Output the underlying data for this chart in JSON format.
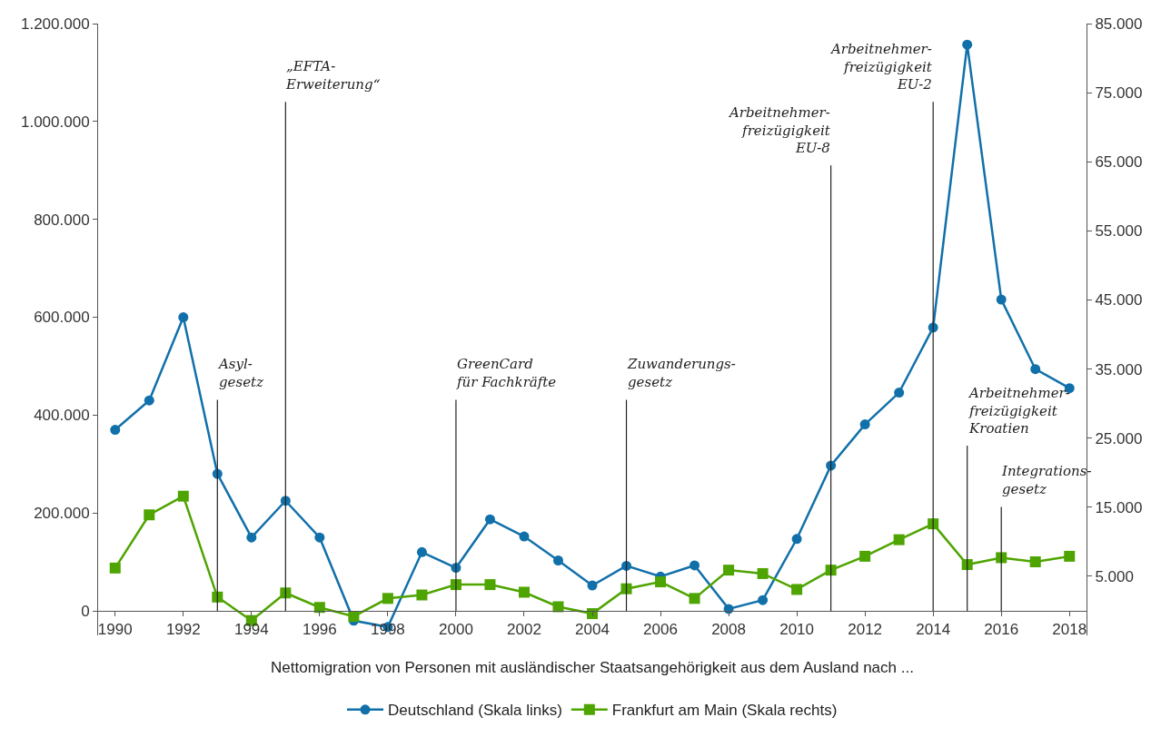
{
  "chart_data": {
    "type": "line",
    "xlabel": "Nettomigration von Personen mit ausländischer Staatsangehörigkeit aus dem Ausland nach ...",
    "x": [
      1990,
      1991,
      1992,
      1993,
      1994,
      1995,
      1996,
      1997,
      1998,
      1999,
      2000,
      2001,
      2002,
      2003,
      2004,
      2005,
      2006,
      2007,
      2008,
      2009,
      2010,
      2011,
      2012,
      2013,
      2014,
      2015,
      2016,
      2017,
      2018
    ],
    "series": [
      {
        "name": "Deutschland (Skala links)",
        "color": "#1170aa",
        "marker": "circle",
        "values": [
          370000,
          430000,
          600000,
          280000,
          150000,
          225000,
          150000,
          -20000,
          -33000,
          120000,
          88000,
          187000,
          152000,
          103000,
          52000,
          92000,
          70000,
          93000,
          4000,
          22000,
          147000,
          297000,
          381000,
          446000,
          579000,
          1157000,
          636000,
          494000,
          455000
        ]
      },
      {
        "name": "Frankfurt am Main (Skala rechts)",
        "color": "#4ea400",
        "marker": "square",
        "axis": "y2",
        "values": [
          6200,
          13900,
          16600,
          2000,
          -1400,
          2600,
          500,
          -800,
          1800,
          2300,
          3800,
          3800,
          2700,
          600,
          -400,
          3200,
          4200,
          1800,
          5900,
          5400,
          3100,
          5900,
          7900,
          10300,
          12600,
          6700,
          7700,
          7100,
          7900
        ]
      }
    ],
    "xlim": [
      1989.5,
      2018.5
    ],
    "xticks": [
      1990,
      1992,
      1994,
      1996,
      1998,
      2000,
      2002,
      2004,
      2006,
      2008,
      2010,
      2012,
      2014,
      2016,
      2018
    ],
    "ylim": [
      -50000,
      1200000
    ],
    "yticks": [
      {
        "value": 0,
        "label": "0"
      },
      {
        "value": 200000,
        "label": "200.000"
      },
      {
        "value": 400000,
        "label": "400.000"
      },
      {
        "value": 600000,
        "label": "600.000"
      },
      {
        "value": 800000,
        "label": "800.000"
      },
      {
        "value": 1000000,
        "label": "1.000.000"
      },
      {
        "value": 1200000,
        "label": "1.200.000"
      }
    ],
    "y2lim": [
      -3542,
      85000
    ],
    "y2ticks": [
      {
        "value": 5000,
        "label": "5.000"
      },
      {
        "value": 15000,
        "label": "15.000"
      },
      {
        "value": 25000,
        "label": "25.000"
      },
      {
        "value": 35000,
        "label": "35.000"
      },
      {
        "value": 45000,
        "label": "45.000"
      },
      {
        "value": 55000,
        "label": "55.000"
      },
      {
        "value": 65000,
        "label": "65.000"
      },
      {
        "value": 75000,
        "label": "75.000"
      },
      {
        "value": 85000,
        "label": "85.000"
      }
    ],
    "ref_lines": [
      {
        "axis": "x",
        "value": 1993,
        "label": "Asyl-\ngesetz",
        "color": "#222222"
      },
      {
        "axis": "x",
        "value": 1995,
        "label": "„EFTA-\nErweiterung“",
        "color": "#222222"
      },
      {
        "axis": "x",
        "value": 2000,
        "label": "GreenCard\nfür Fachkräfte",
        "color": "#222222"
      },
      {
        "axis": "x",
        "value": 2005,
        "label": "Zuwanderungs-\ngesetz",
        "color": "#222222"
      },
      {
        "axis": "x",
        "value": 2011,
        "label": "Arbeitnehmer-\nfreizügigkeit\nEU-8",
        "color": "#222222"
      },
      {
        "axis": "x",
        "value": 2014,
        "label": "Arbeitnehmer-\nfreizügigkeit\nEU-2",
        "color": "#222222"
      },
      {
        "axis": "x",
        "value": 2015,
        "label": "Arbeitnehmer-\nfreizügigkeit\nKroatien",
        "color": "#222222"
      },
      {
        "axis": "x",
        "value": 2016,
        "label": "Integrations-\ngesetz",
        "color": "#222222"
      }
    ],
    "legend": "bottom",
    "line_style": "solid"
  }
}
